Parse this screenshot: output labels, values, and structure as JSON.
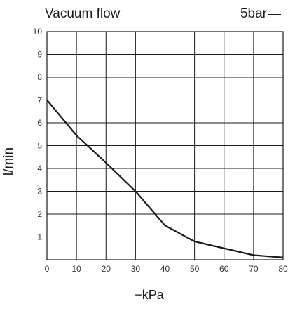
{
  "chart_data": {
    "type": "line",
    "title": "Vacuum flow",
    "xlabel": "−kPa",
    "ylabel": "l/min",
    "x": [
      0,
      10,
      20,
      30,
      40,
      50,
      60,
      70,
      80
    ],
    "series": [
      {
        "name": "5bar",
        "values": [
          7.0,
          5.45,
          4.25,
          3.0,
          1.5,
          0.8,
          0.5,
          0.2,
          0.1
        ]
      }
    ],
    "xlim": [
      0,
      80
    ],
    "ylim": [
      0,
      10
    ],
    "x_ticks": [
      "0",
      "10",
      "20",
      "30",
      "40",
      "50",
      "60",
      "70",
      "80"
    ],
    "y_ticks": [
      "1",
      "2",
      "3",
      "4",
      "5",
      "6",
      "7",
      "8",
      "9",
      "10"
    ],
    "grid": true,
    "legend_position": "top-right",
    "line_color": "#1a1a1a"
  }
}
